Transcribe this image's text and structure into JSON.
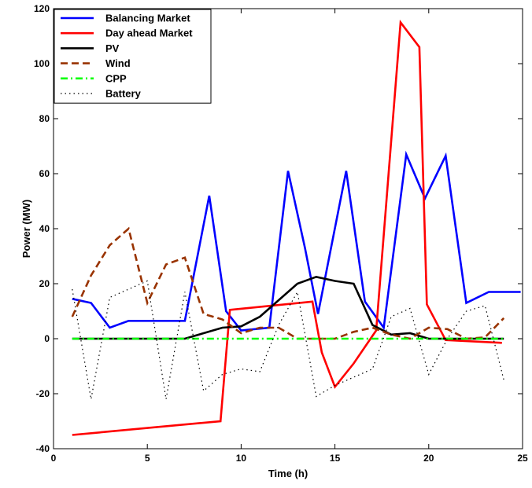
{
  "chart_data": {
    "type": "line",
    "title": "",
    "xlabel": "Time (h)",
    "ylabel": "Power (MW)",
    "xlim": [
      0,
      25
    ],
    "ylim": [
      -40,
      120
    ],
    "xticks": [
      0,
      5,
      10,
      15,
      20,
      25
    ],
    "yticks": [
      -40,
      -20,
      0,
      20,
      40,
      60,
      80,
      100,
      120
    ],
    "grid": false,
    "legend_position": "top-left",
    "series": [
      {
        "name": "Balancing Market",
        "color": "#0000ff",
        "style": "solid",
        "points": [
          [
            1,
            14.5
          ],
          [
            2,
            13
          ],
          [
            3,
            4
          ],
          [
            4,
            6.5
          ],
          [
            5,
            6.5
          ],
          [
            6,
            6.5
          ],
          [
            7,
            6.5
          ],
          [
            8.3,
            52
          ],
          [
            9.2,
            10
          ],
          [
            10,
            3
          ],
          [
            11.5,
            4
          ],
          [
            12.5,
            61
          ],
          [
            13.4,
            33
          ],
          [
            14.1,
            9
          ],
          [
            15.6,
            61
          ],
          [
            16.6,
            13.5
          ],
          [
            17.6,
            4
          ],
          [
            18.8,
            67
          ],
          [
            19.8,
            51
          ],
          [
            20.9,
            66.5
          ],
          [
            22,
            13
          ],
          [
            23.2,
            17
          ],
          [
            24.9,
            17
          ]
        ]
      },
      {
        "name": "Day ahead Market",
        "color": "#ff0000",
        "style": "solid",
        "points": [
          [
            1,
            -35
          ],
          [
            8.9,
            -30
          ],
          [
            9.4,
            10.5
          ],
          [
            13.8,
            13.5
          ],
          [
            14.3,
            -5
          ],
          [
            15,
            -17.5
          ],
          [
            16,
            -9
          ],
          [
            17.2,
            3
          ],
          [
            18.5,
            115
          ],
          [
            19.5,
            106
          ],
          [
            19.9,
            12.5
          ],
          [
            20.9,
            -0.5
          ],
          [
            23.9,
            -1.5
          ]
        ]
      },
      {
        "name": "PV",
        "color": "#000000",
        "style": "solid",
        "points": [
          [
            1,
            0
          ],
          [
            2,
            0
          ],
          [
            3,
            0
          ],
          [
            4,
            0
          ],
          [
            5,
            0
          ],
          [
            6,
            0
          ],
          [
            7,
            0
          ],
          [
            8,
            2
          ],
          [
            9,
            4
          ],
          [
            10,
            4.5
          ],
          [
            11,
            8
          ],
          [
            12,
            14
          ],
          [
            13,
            20
          ],
          [
            14,
            22.5
          ],
          [
            15,
            21
          ],
          [
            16,
            20
          ],
          [
            17,
            5
          ],
          [
            18,
            1.5
          ],
          [
            19,
            2
          ],
          [
            20,
            0
          ],
          [
            21,
            0
          ],
          [
            22,
            0
          ],
          [
            23,
            0
          ],
          [
            24,
            0
          ]
        ]
      },
      {
        "name": "Wind",
        "color": "#993300",
        "style": "dashed",
        "points": [
          [
            1,
            8
          ],
          [
            2,
            23
          ],
          [
            3,
            34
          ],
          [
            4,
            40
          ],
          [
            5,
            13
          ],
          [
            6,
            27
          ],
          [
            7,
            29.5
          ],
          [
            8,
            9
          ],
          [
            9,
            7
          ],
          [
            10,
            2
          ],
          [
            11,
            4
          ],
          [
            12,
            4
          ],
          [
            13,
            0
          ],
          [
            14,
            0
          ],
          [
            15,
            0
          ],
          [
            16,
            2.5
          ],
          [
            17,
            4
          ],
          [
            18,
            1.5
          ],
          [
            19,
            0
          ],
          [
            20,
            4
          ],
          [
            21,
            3.5
          ],
          [
            22,
            0
          ],
          [
            23,
            0.5
          ],
          [
            24,
            7.5
          ]
        ]
      },
      {
        "name": "CPP",
        "color": "#00ff00",
        "style": "dashdot",
        "points": [
          [
            1,
            0
          ],
          [
            24,
            0
          ]
        ]
      },
      {
        "name": "Battery",
        "color": "#000000",
        "style": "dotted",
        "points": [
          [
            1,
            18
          ],
          [
            2,
            -22
          ],
          [
            3,
            15
          ],
          [
            4,
            18
          ],
          [
            5,
            21
          ],
          [
            6,
            -22
          ],
          [
            7,
            17
          ],
          [
            8,
            -19
          ],
          [
            9,
            -13
          ],
          [
            10,
            -11
          ],
          [
            11,
            -12
          ],
          [
            12,
            5
          ],
          [
            13,
            17
          ],
          [
            14,
            -21
          ],
          [
            15,
            -17
          ],
          [
            16,
            -14
          ],
          [
            17,
            -11
          ],
          [
            18,
            8
          ],
          [
            19,
            11
          ],
          [
            20,
            -13
          ],
          [
            21,
            0
          ],
          [
            22,
            10
          ],
          [
            23,
            12
          ],
          [
            24,
            -15
          ]
        ]
      }
    ]
  }
}
